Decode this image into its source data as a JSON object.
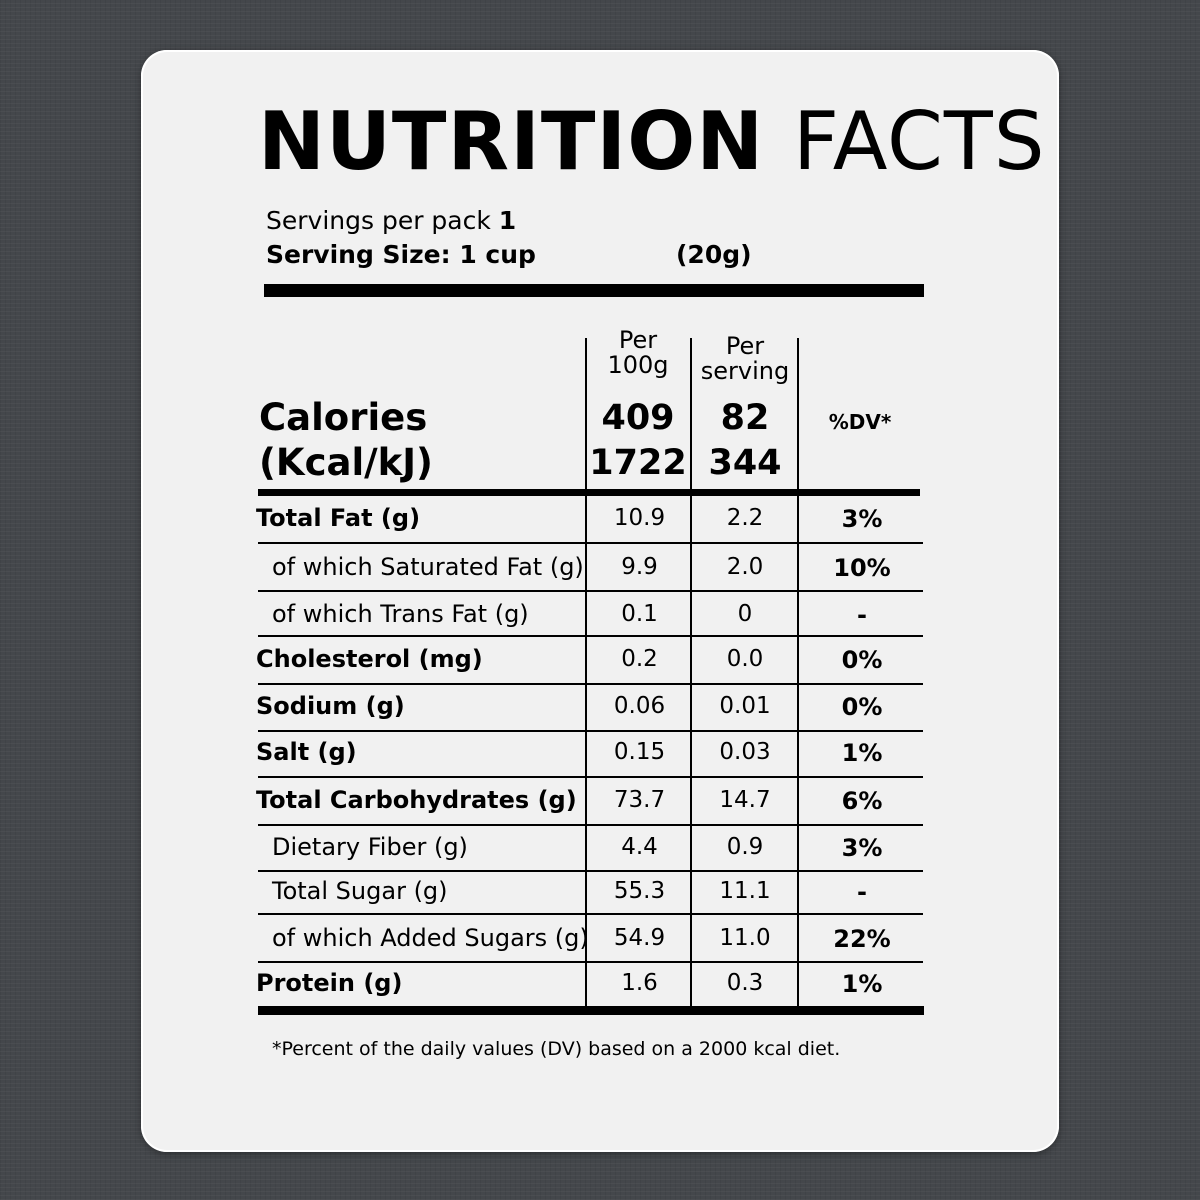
{
  "title": {
    "bold": "NUTRITION",
    "light": "FACTS"
  },
  "servings": {
    "per_pack_label": "Servings per pack",
    "per_pack_value": "1",
    "size_label": "Serving Size: 1 cup",
    "size_grams": "(20g)"
  },
  "columns": {
    "per100_line1": "Per",
    "per100_line2": "100g",
    "perserv_line1": "Per",
    "perserv_line2": "serving",
    "dv": "%DV*"
  },
  "calories": {
    "label_line1": "Calories",
    "label_line2": "(Kcal/kJ)",
    "kcal_100g": "409",
    "kcal_serving": "82",
    "kj_100g": "1722",
    "kj_serving": "344"
  },
  "rows": [
    {
      "label": "Total Fat (g)",
      "per100g": "10.9",
      "perServing": "2.2",
      "dv": "3%"
    },
    {
      "label": "of which Saturated Fat (g)",
      "per100g": "9.9",
      "perServing": "2.0",
      "dv": "10%"
    },
    {
      "label": "of which Trans Fat (g)",
      "per100g": "0.1",
      "perServing": "0",
      "dv": "-"
    },
    {
      "label": "Cholesterol (mg)",
      "per100g": "0.2",
      "perServing": "0.0",
      "dv": "0%"
    },
    {
      "label": "Sodium (g)",
      "per100g": "0.06",
      "perServing": "0.01",
      "dv": "0%"
    },
    {
      "label": "Salt (g)",
      "per100g": "0.15",
      "perServing": "0.03",
      "dv": "1%"
    },
    {
      "label": "Total Carbohydrates (g)",
      "per100g": "73.7",
      "perServing": "14.7",
      "dv": "6%"
    },
    {
      "label": "Dietary Fiber (g)",
      "per100g": "4.4",
      "perServing": "0.9",
      "dv": "3%"
    },
    {
      "label": "Total Sugar (g)",
      "per100g": "55.3",
      "perServing": "11.1",
      "dv": "-"
    },
    {
      "label": "of which Added Sugars (g)",
      "per100g": "54.9",
      "perServing": "11.0",
      "dv": "22%"
    },
    {
      "label": "Protein (g)",
      "per100g": "1.6",
      "perServing": "0.3",
      "dv": "1%"
    }
  ],
  "footnote": "*Percent of the daily values (DV) based on a 2000 kcal diet.",
  "colors": {
    "background": "#44474b",
    "label": "#f1f1f1",
    "ink": "#000000"
  }
}
